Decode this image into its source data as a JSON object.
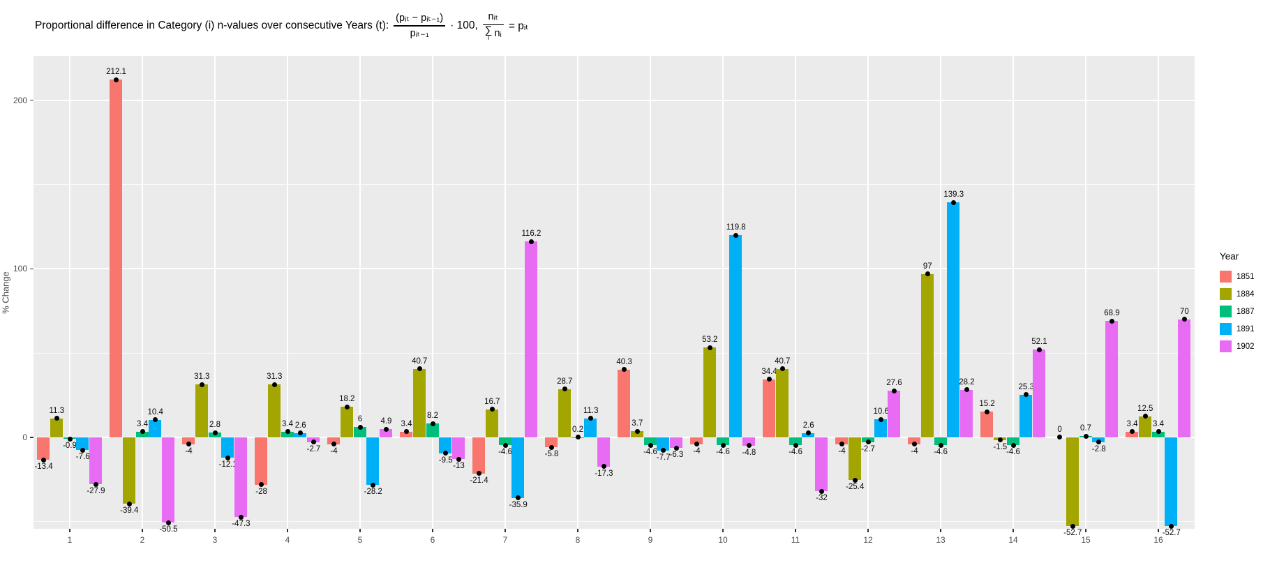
{
  "title": {
    "prefix": "Proportional difference in Category (i) n-values over consecutive Years (t):",
    "frac1_num": "(pᵢₜ − pᵢₜ₋₁)",
    "frac1_den": "pᵢₜ₋₁",
    "mid": "· 100,",
    "frac2_num": "nᵢₜ",
    "sigma": "∑",
    "sigma_sub": "i",
    "frac2_den_rest": "nᵢ",
    "suffix": "= pᵢₜ"
  },
  "axes": {
    "y_label": "% Change",
    "y_ticks": [
      0,
      100,
      200
    ],
    "x_ticks": [
      "1",
      "2",
      "3",
      "4",
      "5",
      "6",
      "7",
      "8",
      "9",
      "10",
      "11",
      "12",
      "13",
      "14",
      "15",
      "16"
    ]
  },
  "legend": {
    "title": "Year",
    "entries": [
      {
        "label": "1851",
        "color": "#F8766D"
      },
      {
        "label": "1884",
        "color": "#A3A500"
      },
      {
        "label": "1887",
        "color": "#00BF7D"
      },
      {
        "label": "1891",
        "color": "#00B0F6"
      },
      {
        "label": "1902",
        "color": "#E76BF3"
      }
    ]
  },
  "chart_data": {
    "type": "bar",
    "title": "Proportional difference in Category (i) n-values over consecutive Years (t): (pit − pit−1)/pit−1 · 100, nit/Σi ni = pit",
    "xlabel": "",
    "ylabel": "% Change",
    "categories": [
      "1",
      "2",
      "3",
      "4",
      "5",
      "6",
      "7",
      "8",
      "9",
      "10",
      "11",
      "12",
      "13",
      "14",
      "15",
      "16"
    ],
    "series": [
      {
        "name": "1851",
        "color": "#F8766D",
        "values": [
          -13.4,
          212.1,
          -4,
          -28,
          -4,
          3.4,
          -21.4,
          -5.8,
          40.3,
          -4,
          34.4,
          -4,
          -4,
          15.2,
          0,
          3.4
        ]
      },
      {
        "name": "1884",
        "color": "#A3A500",
        "values": [
          11.3,
          -39.4,
          31.3,
          31.3,
          18.2,
          40.7,
          16.7,
          28.7,
          3.7,
          53.2,
          40.7,
          -25.4,
          97,
          -1.5,
          -52.7,
          12.5
        ]
      },
      {
        "name": "1887",
        "color": "#00BF7D",
        "values": [
          -0.9,
          3.4,
          2.8,
          3.4,
          6,
          8.2,
          -4.6,
          0.2,
          -4.6,
          -4.6,
          -4.6,
          -2.7,
          -4.6,
          -4.6,
          0.7,
          3.4
        ]
      },
      {
        "name": "1891",
        "color": "#00B0F6",
        "values": [
          -7.6,
          10.4,
          -12.1,
          2.6,
          -28.2,
          -9.5,
          -35.9,
          11.3,
          -7.7,
          119.8,
          2.6,
          10.6,
          139.3,
          25.3,
          -2.8,
          -52.7
        ]
      },
      {
        "name": "1902",
        "color": "#E76BF3",
        "values": [
          -27.9,
          -50.5,
          -47.3,
          -2.7,
          4.9,
          -13,
          116.2,
          -17.3,
          -6.3,
          -4.8,
          -32,
          27.6,
          28.2,
          52.1,
          68.9,
          70
        ]
      }
    ],
    "ylim": [
      -54.2,
      226.3
    ],
    "yticks_major": [
      0,
      100,
      200
    ],
    "yticks_minor": [
      -50,
      50,
      150
    ],
    "grid": true,
    "legend_position": "right",
    "point_markers": true,
    "bar_labels": true,
    "panel_background": "#EBEBEB",
    "gridline_color": "#FFFFFF"
  }
}
